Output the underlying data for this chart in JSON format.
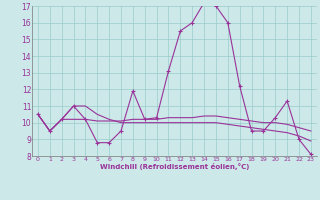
{
  "xlabel": "Windchill (Refroidissement éolien,°C)",
  "bg_color": "#cce8e8",
  "line_color": "#993399",
  "grid_color": "#99cccc",
  "text_color": "#993399",
  "xlim": [
    -0.5,
    23.5
  ],
  "ylim": [
    8,
    17
  ],
  "yticks": [
    8,
    9,
    10,
    11,
    12,
    13,
    14,
    15,
    16,
    17
  ],
  "xticks": [
    0,
    1,
    2,
    3,
    4,
    5,
    6,
    7,
    8,
    9,
    10,
    11,
    12,
    13,
    14,
    15,
    16,
    17,
    18,
    19,
    20,
    21,
    22,
    23
  ],
  "series1_x": [
    0,
    1,
    2,
    3,
    4,
    5,
    6,
    7,
    8,
    9,
    10,
    11,
    12,
    13,
    14,
    15,
    16,
    17,
    18,
    19,
    20,
    21,
    22,
    23
  ],
  "series1_y": [
    10.5,
    9.5,
    10.2,
    11.0,
    10.2,
    8.8,
    8.8,
    9.5,
    11.9,
    10.2,
    10.3,
    13.1,
    15.5,
    16.0,
    17.2,
    17.0,
    16.0,
    12.2,
    9.5,
    9.5,
    10.3,
    11.3,
    9.0,
    8.1
  ],
  "series2_x": [
    0,
    1,
    2,
    3,
    4,
    5,
    6,
    7,
    8,
    9,
    10,
    11,
    12,
    13,
    14,
    15,
    16,
    17,
    18,
    19,
    20,
    21,
    22,
    23
  ],
  "series2_y": [
    10.5,
    9.5,
    10.2,
    10.2,
    10.2,
    10.1,
    10.1,
    10.1,
    10.2,
    10.2,
    10.2,
    10.3,
    10.3,
    10.3,
    10.4,
    10.4,
    10.3,
    10.2,
    10.1,
    10.0,
    10.0,
    9.9,
    9.7,
    9.5
  ],
  "series3_x": [
    0,
    1,
    2,
    3,
    4,
    5,
    6,
    7,
    8,
    9,
    10,
    11,
    12,
    13,
    14,
    15,
    16,
    17,
    18,
    19,
    20,
    21,
    22,
    23
  ],
  "series3_y": [
    10.5,
    9.5,
    10.2,
    11.0,
    11.0,
    10.5,
    10.2,
    10.0,
    10.0,
    10.0,
    10.0,
    10.0,
    10.0,
    10.0,
    10.0,
    10.0,
    9.9,
    9.8,
    9.7,
    9.6,
    9.5,
    9.4,
    9.2,
    8.9
  ]
}
